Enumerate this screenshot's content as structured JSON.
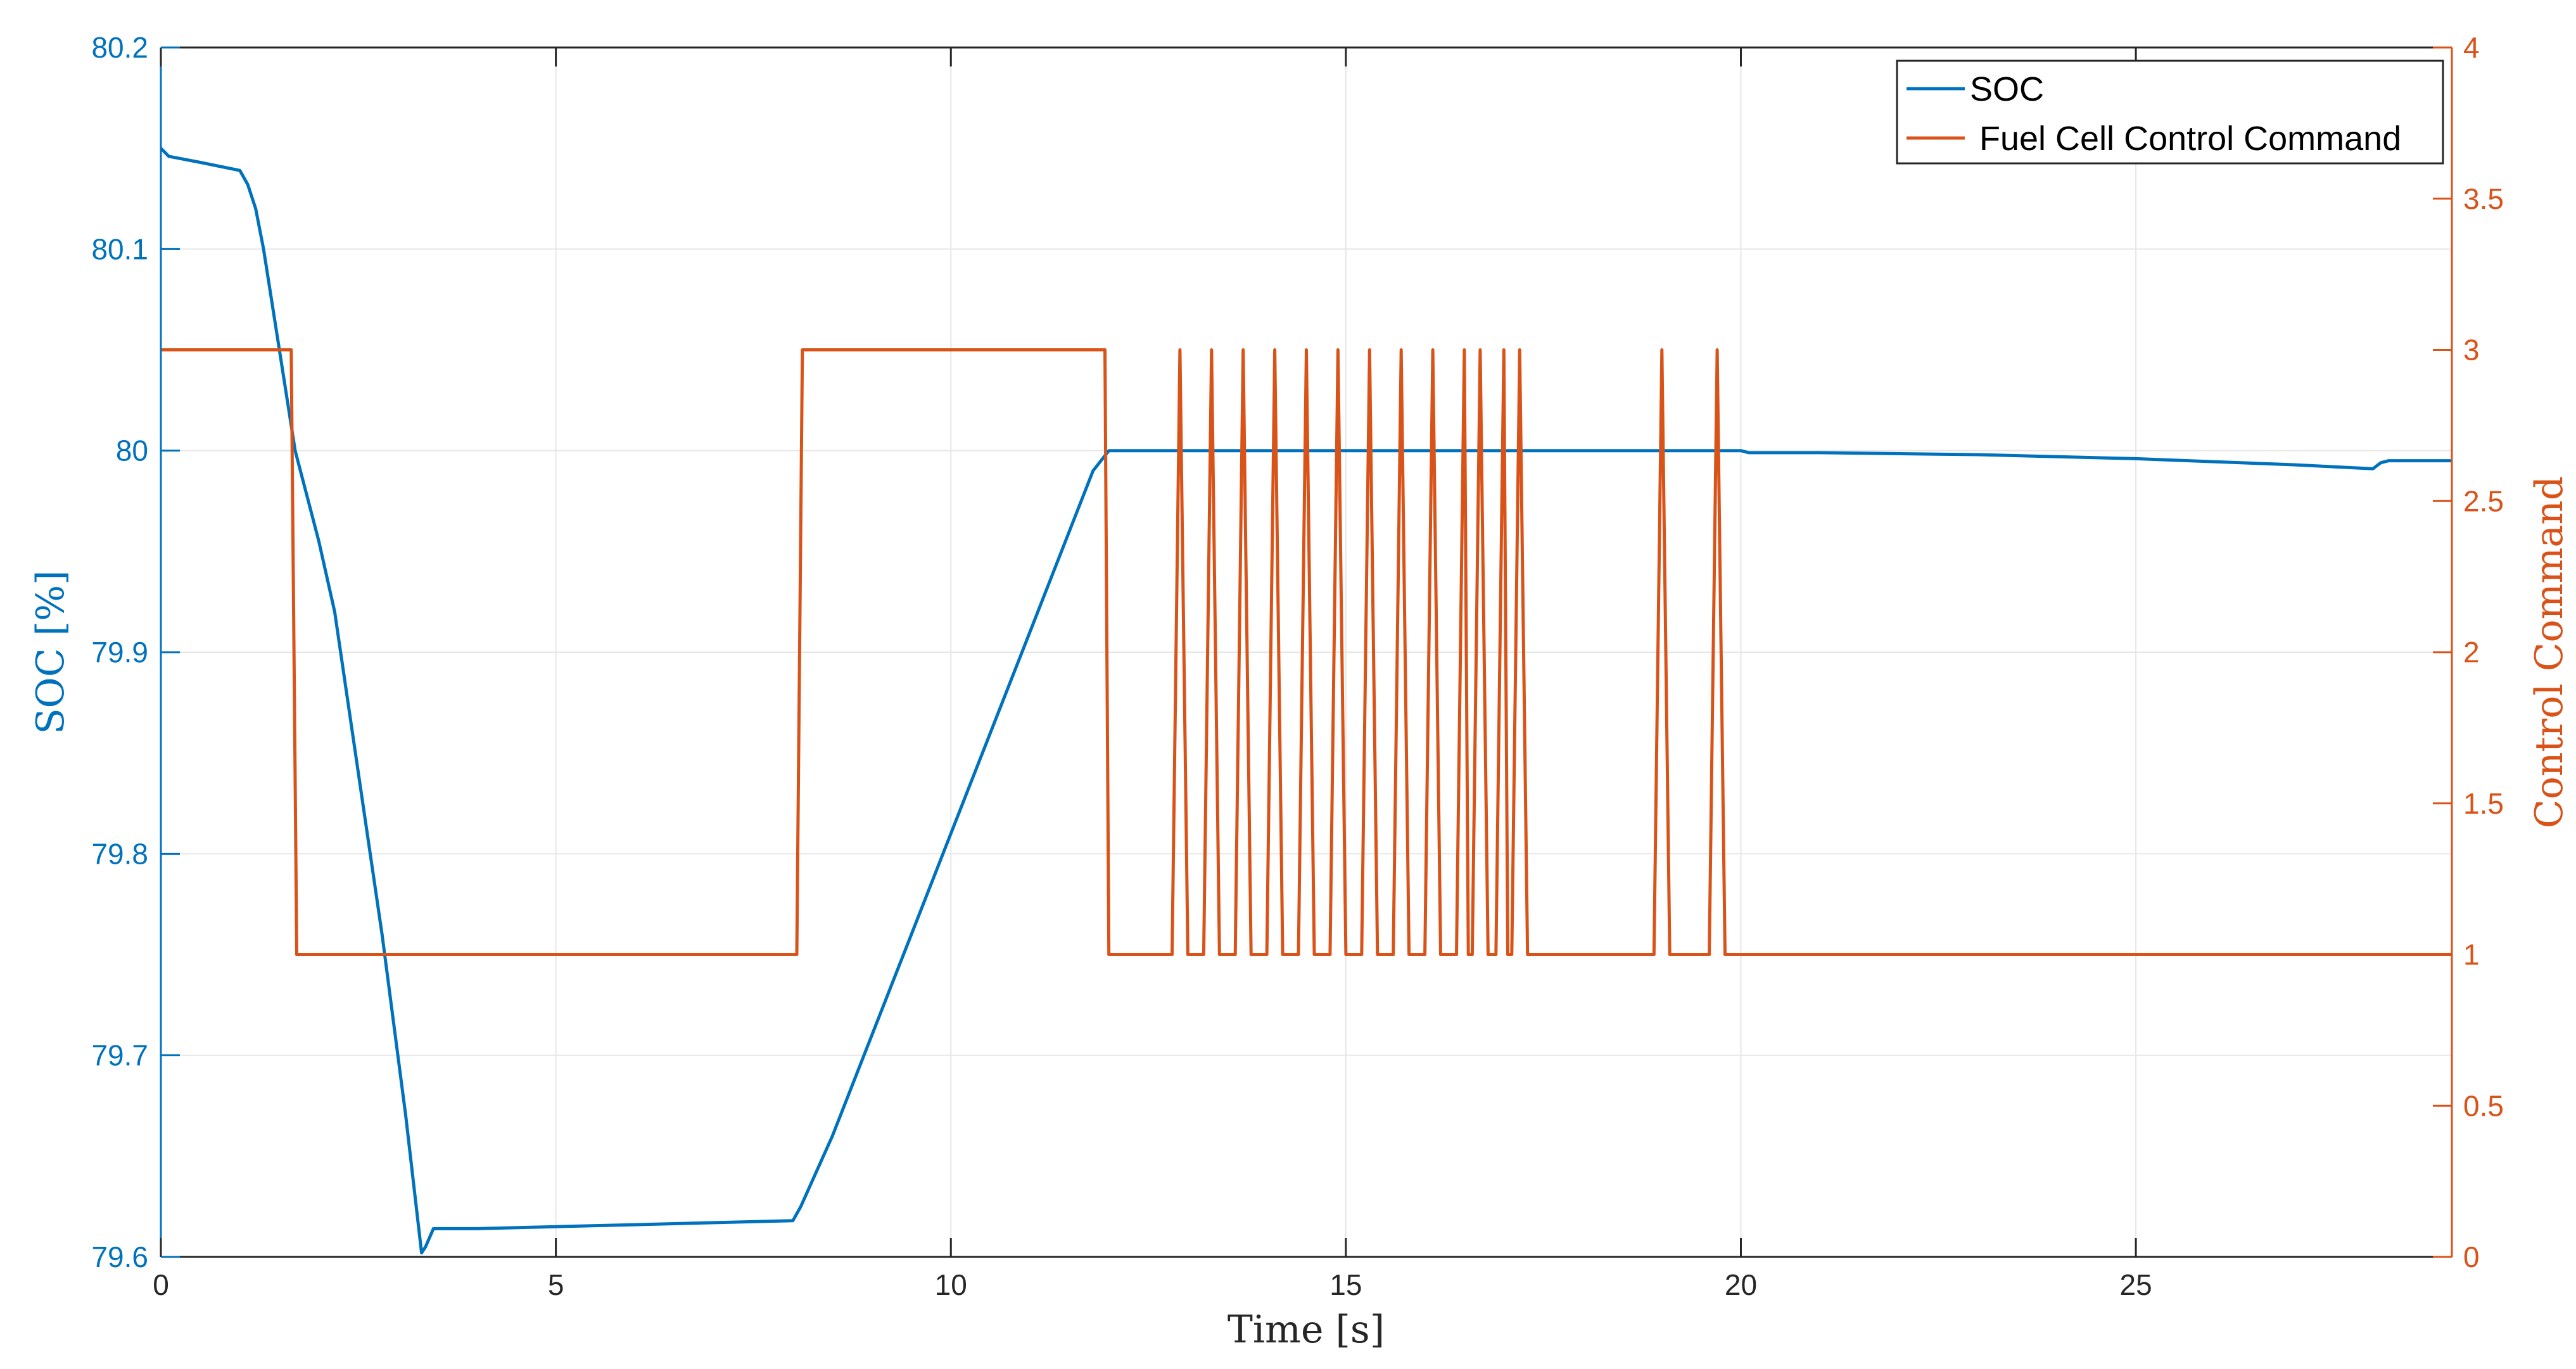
{
  "chart_data": {
    "type": "line",
    "xlabel": "Time [s]",
    "ylabel_left": "SOC [%]",
    "ylabel_right": "Control Command",
    "xlim": [
      0,
      29
    ],
    "ylim_left": [
      79.6,
      80.2
    ],
    "ylim_right": [
      0,
      4
    ],
    "x_ticks": [
      0,
      5,
      10,
      15,
      20,
      25
    ],
    "y_left_ticks": [
      79.6,
      79.7,
      79.8,
      79.9,
      80,
      80.1,
      80.2
    ],
    "y_right_ticks": [
      0,
      0.5,
      1,
      1.5,
      2,
      2.5,
      3,
      3.5,
      4
    ],
    "grid": true,
    "legend_position": "top-right",
    "colors": {
      "soc": "#0072BD",
      "command": "#D95319",
      "grid": "#e6e6e6",
      "axis": "#262626"
    },
    "series": [
      {
        "name": "SOC",
        "axis": "left",
        "color": "#0072BD",
        "x": [
          0,
          0.1,
          0.5,
          1.0,
          1.1,
          1.2,
          1.3,
          1.5,
          1.7,
          2.0,
          2.2,
          2.5,
          2.8,
          3.1,
          3.3,
          3.35,
          3.45,
          4.0,
          5.0,
          6.0,
          7.0,
          8.0,
          8.1,
          8.5,
          9.0,
          9.5,
          10.0,
          10.5,
          11.0,
          11.5,
          11.8,
          12.0,
          14.0,
          16.0,
          18.0,
          19.5,
          20.0,
          20.1,
          21.0,
          23.0,
          25.0,
          27.0,
          28.0,
          28.1,
          28.2,
          29.0
        ],
        "values": [
          80.15,
          80.146,
          80.143,
          80.139,
          80.132,
          80.12,
          80.1,
          80.05,
          80.0,
          79.955,
          79.92,
          79.84,
          79.76,
          79.67,
          79.602,
          79.605,
          79.614,
          79.614,
          79.615,
          79.616,
          79.617,
          79.618,
          79.625,
          79.66,
          79.71,
          79.76,
          79.81,
          79.86,
          79.91,
          79.96,
          79.99,
          80.0,
          80.0,
          80.0,
          80.0,
          80.0,
          80.0,
          79.999,
          79.999,
          79.998,
          79.996,
          79.993,
          79.991,
          79.994,
          79.995,
          79.995
        ]
      },
      {
        "name": "Fuel Cell Control Command",
        "axis": "right",
        "color": "#D95319",
        "x": [
          0,
          1.65,
          1.72,
          1.75,
          8.05,
          8.12,
          11.9,
          11.95,
          12.0,
          12.8,
          12.9,
          13.0,
          13.2,
          13.3,
          13.4,
          13.6,
          13.7,
          13.8,
          14.0,
          14.1,
          14.2,
          14.4,
          14.5,
          14.6,
          14.8,
          14.9,
          15.0,
          15.2,
          15.3,
          15.4,
          15.6,
          15.7,
          15.8,
          16.0,
          16.1,
          16.2,
          16.4,
          16.5,
          16.55,
          16.6,
          16.7,
          16.8,
          16.9,
          17.0,
          17.05,
          17.1,
          17.2,
          17.3,
          18.9,
          19.0,
          19.1,
          19.6,
          19.7,
          19.8,
          29.0
        ],
        "values": [
          3,
          3,
          1,
          1,
          1,
          3,
          3,
          3,
          1,
          1,
          3,
          1,
          1,
          3,
          1,
          1,
          3,
          1,
          1,
          3,
          1,
          1,
          3,
          1,
          1,
          3,
          1,
          1,
          3,
          1,
          1,
          3,
          1,
          1,
          3,
          1,
          1,
          3,
          1,
          1,
          3,
          1,
          1,
          3,
          1,
          1,
          3,
          1,
          1,
          3,
          1,
          1,
          3,
          1,
          1
        ]
      }
    ]
  }
}
